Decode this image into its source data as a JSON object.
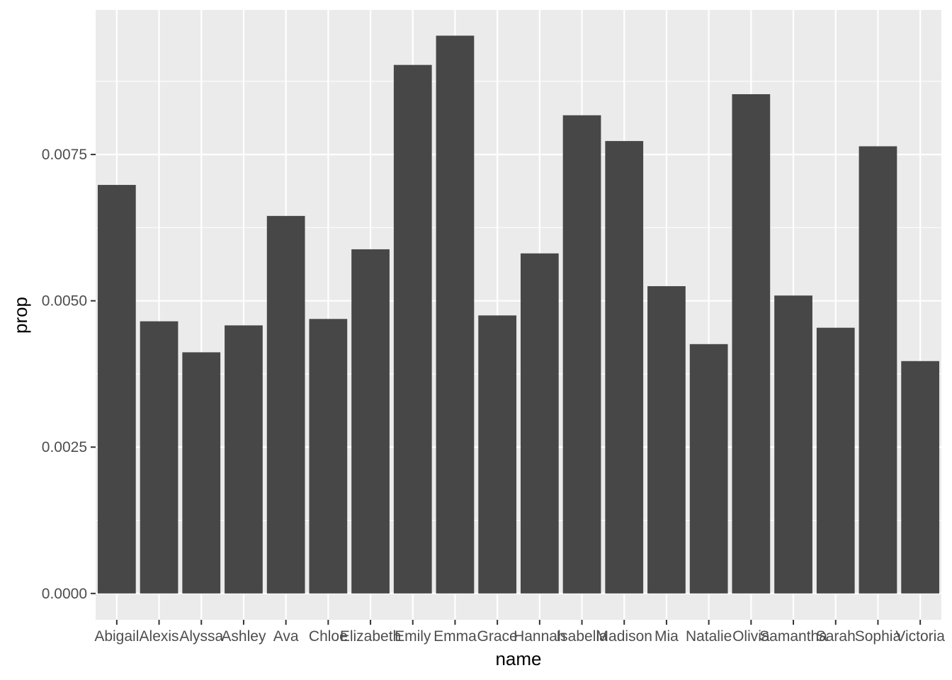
{
  "chart_data": {
    "type": "bar",
    "xlabel": "name",
    "ylabel": "prop",
    "categories": [
      "Abigail",
      "Alexis",
      "Alyssa",
      "Ashley",
      "Ava",
      "Chloe",
      "Elizabeth",
      "Emily",
      "Emma",
      "Grace",
      "Hannah",
      "Isabella",
      "Madison",
      "Mia",
      "Natalie",
      "Olivia",
      "Samantha",
      "Sarah",
      "Sophia",
      "Victoria"
    ],
    "values": [
      0.00698,
      0.00465,
      0.00412,
      0.00458,
      0.00645,
      0.00469,
      0.00588,
      0.00903,
      0.00953,
      0.00475,
      0.00581,
      0.00817,
      0.00773,
      0.00525,
      0.00426,
      0.00853,
      0.00509,
      0.00454,
      0.00764,
      0.00397
    ],
    "ylim": [
      -0.00045,
      0.00997
    ],
    "yticks": [
      0,
      0.0025,
      0.005,
      0.0075
    ],
    "ytick_labels": [
      "0.0000",
      "0.0025",
      "0.0050",
      "0.0075"
    ],
    "grid": true,
    "colors": {
      "bar": "#474747",
      "panel": "#EBEBEB",
      "grid": "#FFFFFF",
      "tick": "#4D4D4D"
    }
  }
}
